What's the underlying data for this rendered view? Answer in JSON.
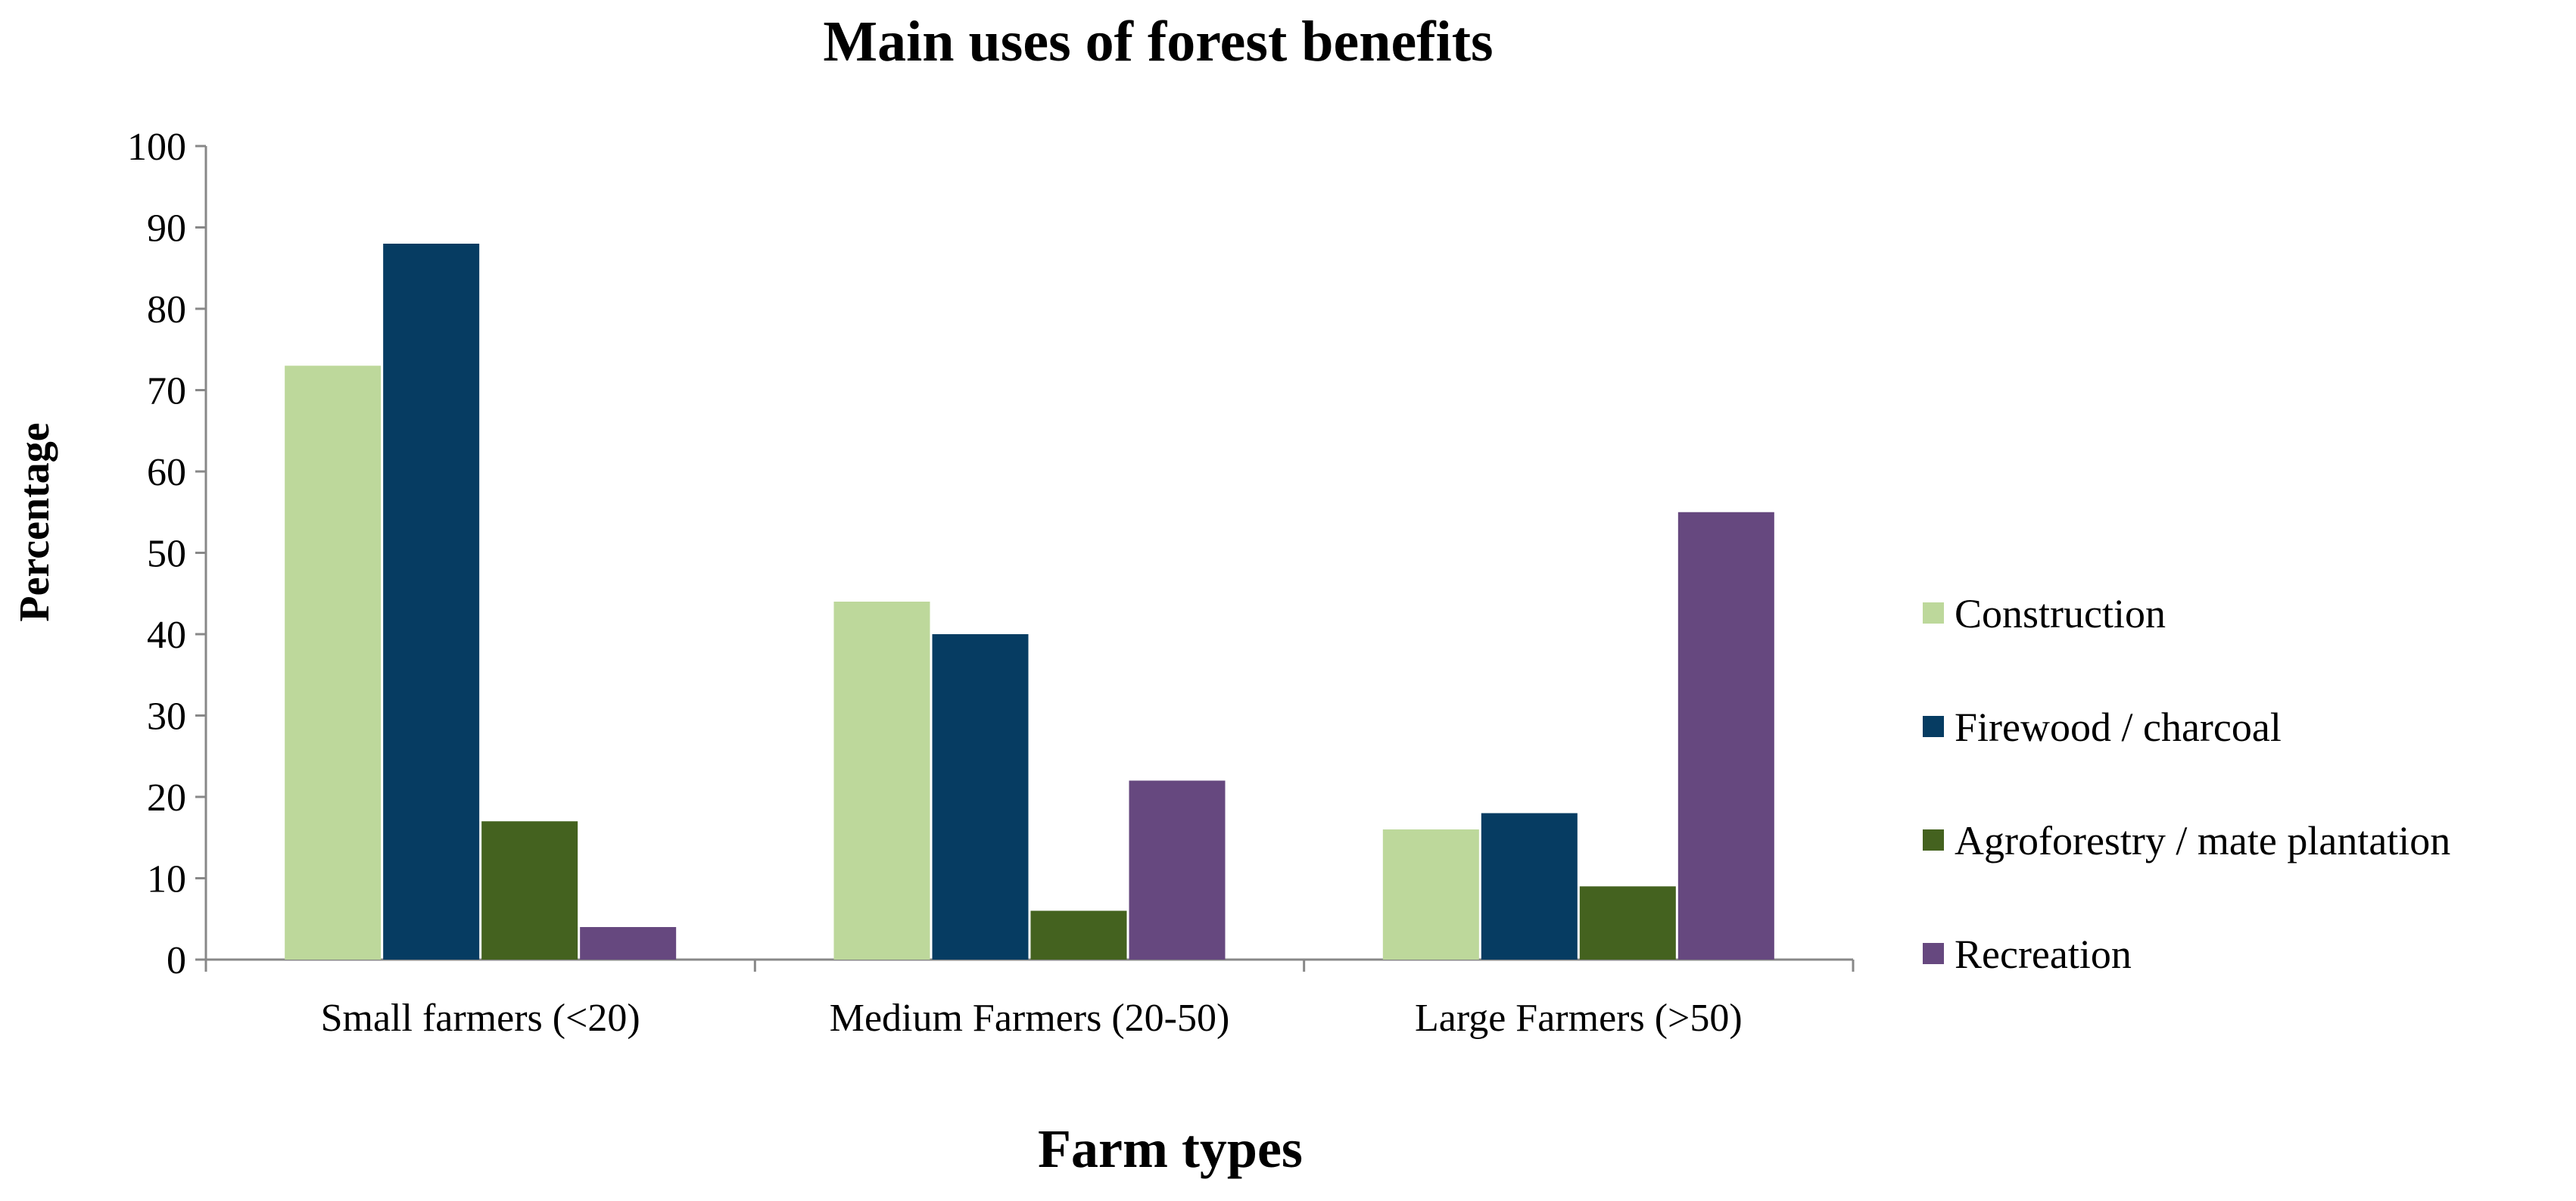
{
  "chart_data": {
    "type": "bar",
    "title": "Main uses of forest benefits",
    "xlabel": "Farm types",
    "ylabel": "Percentage",
    "ylim": [
      0,
      100
    ],
    "yticks": [
      "0",
      "10",
      "20",
      "30",
      "40",
      "50",
      "60",
      "70",
      "80",
      "90",
      "100"
    ],
    "grid": false,
    "legend_position": "right",
    "categories": [
      "Small farmers (<20)",
      "Medium Farmers (20-50)",
      "Large Farmers (>50)"
    ],
    "series": [
      {
        "name": "Construction",
        "color": "#BDD89B",
        "values": [
          73,
          44,
          16
        ]
      },
      {
        "name": "Firewood / charcoal",
        "color": "#063C62",
        "values": [
          88,
          40,
          18
        ]
      },
      {
        "name": "Agroforestry / mate plantation",
        "color": "#44621F",
        "values": [
          17,
          6,
          9
        ]
      },
      {
        "name": "Recreation",
        "color": "#66487F",
        "values": [
          4,
          22,
          55
        ]
      }
    ]
  }
}
